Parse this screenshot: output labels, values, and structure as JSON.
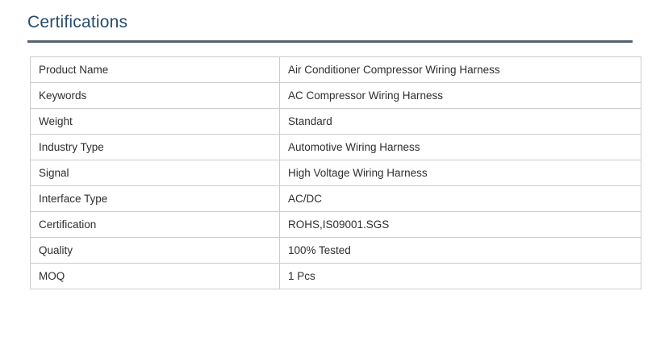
{
  "title": "Certifications",
  "colors": {
    "title_text": "#274b6d",
    "divider": "#55616e",
    "table_border": "#cccccc",
    "cell_text": "#2e2e2e",
    "background": "#ffffff"
  },
  "table": {
    "rows": [
      {
        "label": "Product Name",
        "value": "Air Conditioner Compressor Wiring Harness"
      },
      {
        "label": "Keywords",
        "value": "AC Compressor Wiring Harness"
      },
      {
        "label": "Weight",
        "value": "Standard"
      },
      {
        "label": "Industry Type",
        "value": "Automotive Wiring Harness"
      },
      {
        "label": "Signal",
        "value": "High Voltage Wiring Harness"
      },
      {
        "label": "Interface Type",
        "value": "AC/DC"
      },
      {
        "label": "Certification",
        "value": "ROHS,IS09001.SGS"
      },
      {
        "label": "Quality",
        "value": "100% Tested"
      },
      {
        "label": "MOQ",
        "value": "1 Pcs"
      }
    ]
  }
}
